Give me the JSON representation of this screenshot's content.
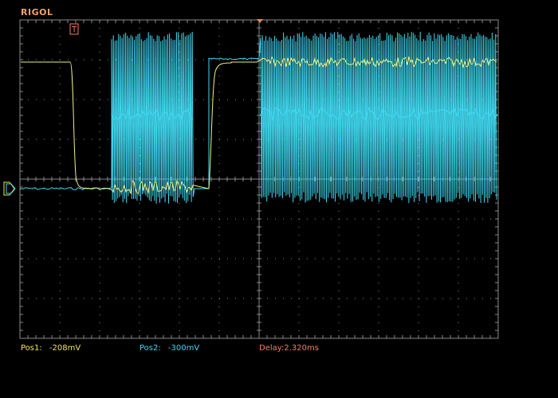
{
  "brand": "RIGOL",
  "status": {
    "pos1_label": "Pos1:",
    "pos1_value": "-208mV",
    "pos2_label": "Pos2:",
    "pos2_value": "-300mV",
    "delay_label": "Delay:",
    "delay_value": "2.320ms"
  },
  "markers": {
    "trigger": "T",
    "channel_ground": "⊟"
  },
  "colors": {
    "ch1": "#f0f080",
    "ch2": "#40d8f0",
    "grid": "#8a8a8a",
    "brand": "#f0a070",
    "delay": "#f08060"
  }
}
